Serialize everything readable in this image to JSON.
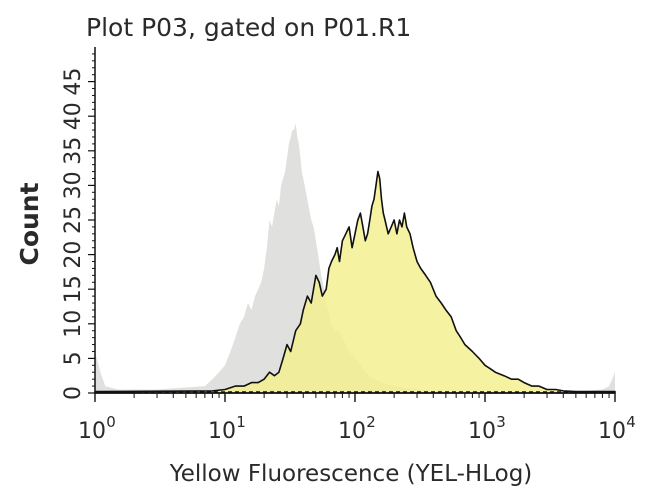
{
  "chart_data": {
    "type": "area",
    "title": "Plot P03, gated on P01.R1",
    "xlabel": "Yellow Fluorescence (YEL-HLog)",
    "ylabel": "Count",
    "x_scale": "log",
    "xlim": [
      1,
      10000
    ],
    "ylim": [
      0,
      50
    ],
    "x_ticks": [
      {
        "base": "10",
        "exp": "0"
      },
      {
        "base": "10",
        "exp": "1"
      },
      {
        "base": "10",
        "exp": "2"
      },
      {
        "base": "10",
        "exp": "3"
      },
      {
        "base": "10",
        "exp": "4"
      }
    ],
    "y_ticks": [
      "0",
      "5",
      "10",
      "15",
      "20",
      "25",
      "30",
      "35",
      "40",
      "45"
    ],
    "grid": false,
    "legend": "none",
    "series": [
      {
        "fill": "#e0e0de",
        "stroke": "none",
        "style": "filled",
        "x": [
          1.0,
          1.1,
          1.2,
          1.5,
          2,
          3,
          5,
          7,
          8,
          9,
          10,
          11,
          12,
          13,
          14,
          15,
          16,
          17,
          18,
          19,
          20,
          21,
          22,
          23,
          24,
          25,
          26,
          27,
          28,
          29,
          30,
          31,
          32,
          33,
          34,
          35,
          36,
          37,
          38,
          39,
          40,
          42,
          44,
          46,
          48,
          50,
          52,
          55,
          58,
          60,
          62,
          65,
          70,
          75,
          80,
          85,
          90,
          100,
          110,
          120,
          140,
          160,
          200,
          300,
          400,
          600,
          1000,
          2000,
          5000,
          8000,
          9000,
          9500,
          10000
        ],
        "y": [
          6,
          3,
          1,
          0.5,
          0.5,
          0.5,
          0.8,
          1,
          2,
          3,
          4,
          6,
          8,
          10,
          11,
          13,
          12,
          14,
          15,
          16,
          18,
          21,
          25,
          24,
          26,
          28,
          27,
          30,
          31,
          32,
          34,
          36,
          37,
          38,
          38,
          39,
          37,
          36,
          34,
          32,
          31,
          29,
          27,
          25,
          24,
          22,
          20,
          17,
          15,
          13,
          12,
          10,
          9,
          9,
          8,
          7,
          6,
          5,
          4,
          3,
          2,
          1.5,
          1,
          0.5,
          0.3,
          0.2,
          0.2,
          0.2,
          0.2,
          0.5,
          1,
          2,
          3
        ]
      },
      {
        "fill": "#f3ef8e",
        "stroke": "#111111",
        "style": "outlined",
        "x": [
          1,
          8,
          10,
          12,
          14,
          16,
          18,
          20,
          22,
          24,
          26,
          28,
          30,
          32,
          35,
          38,
          40,
          43,
          46,
          50,
          53,
          56,
          60,
          63,
          66,
          70,
          73,
          76,
          80,
          85,
          90,
          95,
          100,
          105,
          110,
          115,
          120,
          125,
          130,
          135,
          140,
          145,
          150,
          155,
          160,
          165,
          170,
          175,
          180,
          190,
          200,
          210,
          220,
          230,
          240,
          250,
          265,
          280,
          300,
          320,
          350,
          380,
          420,
          460,
          500,
          550,
          600,
          650,
          700,
          800,
          900,
          1000,
          1100,
          1200,
          1400,
          1600,
          1800,
          2000,
          2300,
          2600,
          3000,
          3500,
          4000,
          5000,
          10000
        ],
        "y": [
          0.2,
          0.3,
          0.5,
          1,
          1,
          1.5,
          1.5,
          2,
          3,
          2.5,
          3,
          5,
          7,
          6,
          9,
          10,
          12,
          14,
          13,
          17,
          16,
          14,
          15,
          18,
          19,
          20,
          21,
          19,
          22,
          23,
          24,
          21,
          23,
          25,
          26,
          24,
          22,
          23,
          25,
          27,
          28,
          30,
          32,
          31,
          28,
          26,
          25,
          24,
          23,
          24,
          25,
          23,
          25,
          24,
          26,
          24,
          23,
          21,
          19,
          18,
          17,
          16,
          14,
          13,
          12,
          11,
          9,
          8,
          7,
          6,
          5,
          4,
          3.5,
          3,
          2.5,
          2,
          2,
          1.5,
          1,
          1,
          0.5,
          0.5,
          0.3,
          0.2,
          0.2
        ]
      }
    ]
  }
}
